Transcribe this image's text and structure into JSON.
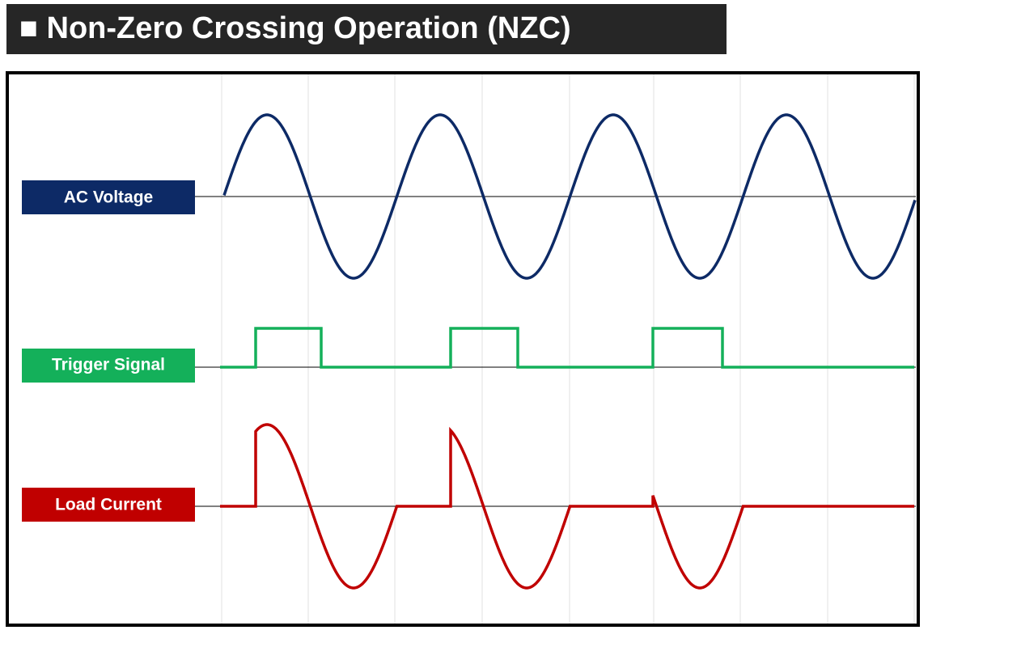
{
  "header": {
    "title": "■ Non-Zero Crossing Operation (NZC)"
  },
  "signals": [
    {
      "label": "AC Voltage"
    },
    {
      "label": "Trigger Signal"
    },
    {
      "label": "Load Current"
    }
  ]
}
